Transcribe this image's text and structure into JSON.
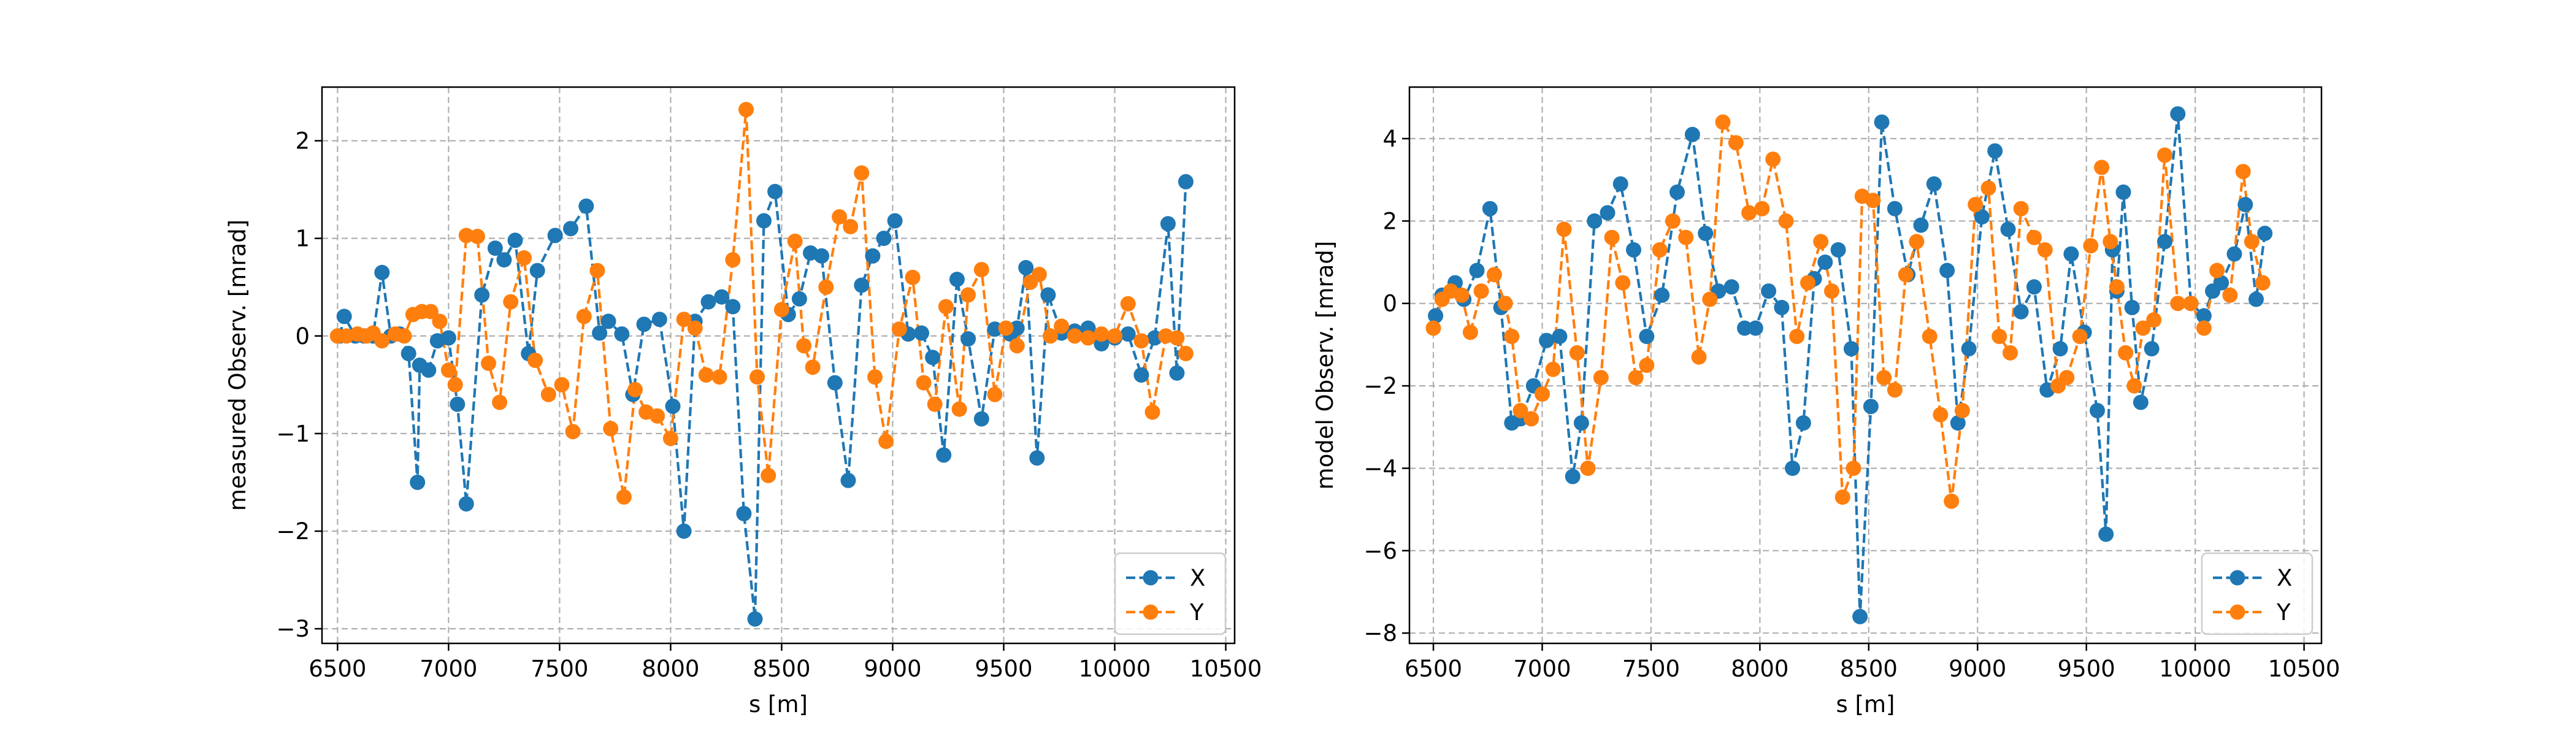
{
  "colors": {
    "X": "#1f77b4",
    "Y": "#ff7f0e"
  },
  "chart_data": [
    {
      "type": "line",
      "marker": "circle",
      "line_style": "dashed",
      "xlabel": "s [m]",
      "ylabel": "measured Observ. [mrad]",
      "xlim": [
        6430,
        10540
      ],
      "ylim": [
        -3.15,
        2.55
      ],
      "xticks": [
        6500,
        7000,
        7500,
        8000,
        8500,
        9000,
        9500,
        10000,
        10500
      ],
      "yticks": [
        -3,
        -2,
        -1,
        0,
        1,
        2
      ],
      "ytick_labels": [
        "−3",
        "−2",
        "−1",
        "0",
        "1",
        "2"
      ],
      "grid": true,
      "legend_position": "lower-right",
      "series": [
        {
          "name": "X",
          "x": [
            6510,
            6530,
            6580,
            6620,
            6660,
            6700,
            6740,
            6780,
            6820,
            6860,
            6870,
            6910,
            6950,
            7000,
            7040,
            7080,
            7150,
            7210,
            7250,
            7300,
            7360,
            7400,
            7480,
            7550,
            7620,
            7680,
            7720,
            7780,
            7830,
            7880,
            7950,
            8010,
            8060,
            8110,
            8170,
            8230,
            8280,
            8330,
            8380,
            8420,
            8470,
            8530,
            8580,
            8630,
            8680,
            8740,
            8800,
            8860,
            8910,
            8960,
            9010,
            9070,
            9130,
            9180,
            9230,
            9290,
            9340,
            9400,
            9460,
            9530,
            9560,
            9600,
            9650,
            9700,
            9760,
            9820,
            9880,
            9940,
            10000,
            10060,
            10120,
            10180,
            10240,
            10280,
            10320
          ],
          "y": [
            0.0,
            0.2,
            0.0,
            0.0,
            0.0,
            0.65,
            0.0,
            0.02,
            -0.18,
            -1.5,
            -0.3,
            -0.35,
            -0.05,
            -0.02,
            -0.7,
            -1.72,
            0.42,
            0.9,
            0.78,
            0.98,
            -0.18,
            0.67,
            1.03,
            1.1,
            1.33,
            0.03,
            0.15,
            0.02,
            -0.6,
            0.12,
            0.17,
            -0.72,
            -2.0,
            0.15,
            0.35,
            0.4,
            0.3,
            -1.82,
            -2.9,
            1.18,
            1.48,
            0.22,
            0.38,
            0.85,
            0.82,
            -0.48,
            -1.48,
            0.52,
            0.82,
            1.0,
            1.18,
            0.02,
            0.03,
            -0.22,
            -1.22,
            0.58,
            -0.03,
            -0.85,
            0.07,
            0.02,
            0.08,
            0.7,
            -1.25,
            0.42,
            0.03,
            0.05,
            0.08,
            -0.08,
            -0.02,
            0.02,
            -0.4,
            -0.02,
            1.15,
            -0.38,
            1.58
          ]
        },
        {
          "name": "Y",
          "x": [
            6500,
            6540,
            6590,
            6630,
            6660,
            6700,
            6760,
            6800,
            6840,
            6880,
            6920,
            6960,
            7000,
            7030,
            7080,
            7130,
            7180,
            7230,
            7280,
            7340,
            7390,
            7450,
            7510,
            7560,
            7610,
            7670,
            7730,
            7790,
            7840,
            7890,
            7940,
            8000,
            8060,
            8110,
            8160,
            8220,
            8280,
            8340,
            8390,
            8440,
            8500,
            8560,
            8600,
            8640,
            8700,
            8760,
            8810,
            8860,
            8920,
            8970,
            9030,
            9090,
            9140,
            9190,
            9240,
            9300,
            9340,
            9400,
            9460,
            9510,
            9560,
            9620,
            9660,
            9710,
            9760,
            9820,
            9880,
            9940,
            10000,
            10060,
            10120,
            10170,
            10230,
            10280,
            10320
          ],
          "y": [
            0.0,
            0.0,
            0.02,
            0.0,
            0.03,
            -0.05,
            0.02,
            0.0,
            0.22,
            0.25,
            0.25,
            0.15,
            -0.35,
            -0.5,
            1.03,
            1.02,
            -0.28,
            -0.68,
            0.35,
            0.8,
            -0.25,
            -0.6,
            -0.5,
            -0.98,
            0.2,
            0.67,
            -0.95,
            -1.65,
            -0.55,
            -0.78,
            -0.82,
            -1.05,
            0.17,
            0.08,
            -0.4,
            -0.42,
            0.78,
            2.32,
            -0.42,
            -1.43,
            0.27,
            0.97,
            -0.1,
            -0.32,
            0.5,
            1.22,
            1.12,
            1.67,
            -0.42,
            -1.08,
            0.07,
            0.6,
            -0.48,
            -0.7,
            0.3,
            -0.75,
            0.42,
            0.68,
            -0.6,
            0.08,
            -0.1,
            0.55,
            0.63,
            0.0,
            0.1,
            0.0,
            -0.02,
            0.02,
            0.0,
            0.33,
            -0.05,
            -0.78,
            0.0,
            -0.02,
            -0.18
          ]
        }
      ]
    },
    {
      "type": "line",
      "marker": "circle",
      "line_style": "dashed",
      "xlabel": "s [m]",
      "ylabel": "model Observ. [mrad]",
      "xlim": [
        6390,
        10580
      ],
      "ylim": [
        -8.25,
        5.25
      ],
      "xticks": [
        6500,
        7000,
        7500,
        8000,
        8500,
        9000,
        9500,
        10000,
        10500
      ],
      "yticks": [
        -8,
        -6,
        -4,
        -2,
        0,
        2,
        4
      ],
      "ytick_labels": [
        "−8",
        "−6",
        "−4",
        "−2",
        "0",
        "2",
        "4"
      ],
      "grid": true,
      "legend_position": "lower-right",
      "series": [
        {
          "name": "X",
          "x": [
            6510,
            6540,
            6600,
            6640,
            6700,
            6760,
            6810,
            6860,
            6900,
            6960,
            7020,
            7080,
            7140,
            7180,
            7240,
            7300,
            7360,
            7420,
            7480,
            7550,
            7620,
            7690,
            7750,
            7810,
            7870,
            7930,
            7980,
            8040,
            8100,
            8150,
            8200,
            8250,
            8300,
            8360,
            8420,
            8460,
            8510,
            8560,
            8620,
            8680,
            8740,
            8800,
            8860,
            8910,
            8960,
            9020,
            9080,
            9140,
            9200,
            9260,
            9320,
            9380,
            9430,
            9490,
            9550,
            9590,
            9620,
            9640,
            9670,
            9710,
            9750,
            9800,
            9860,
            9920,
            9980,
            10040,
            10080,
            10120,
            10180,
            10230,
            10280,
            10320
          ],
          "y": [
            -0.3,
            0.2,
            0.5,
            0.1,
            0.8,
            2.3,
            -0.1,
            -2.9,
            -2.8,
            -2.0,
            -0.9,
            -0.8,
            -4.2,
            -2.9,
            2.0,
            2.2,
            2.9,
            1.3,
            -0.8,
            0.2,
            2.7,
            4.1,
            1.7,
            0.3,
            0.4,
            -0.6,
            -0.6,
            0.3,
            -0.1,
            -4.0,
            -2.9,
            0.6,
            1.0,
            1.3,
            -1.1,
            -7.6,
            -2.5,
            4.4,
            2.3,
            0.7,
            1.9,
            2.9,
            0.8,
            -2.9,
            -1.1,
            2.1,
            3.7,
            1.8,
            -0.2,
            0.4,
            -2.1,
            -1.1,
            1.2,
            -0.7,
            -2.6,
            -5.6,
            1.3,
            0.3,
            2.7,
            -0.1,
            -2.4,
            -1.1,
            1.5,
            4.6,
            0.0,
            -0.3,
            0.3,
            0.5,
            1.2,
            2.4,
            0.1,
            1.7
          ]
        },
        {
          "name": "Y",
          "x": [
            6500,
            6540,
            6580,
            6630,
            6670,
            6720,
            6780,
            6830,
            6860,
            6900,
            6950,
            7000,
            7050,
            7100,
            7160,
            7210,
            7270,
            7320,
            7370,
            7430,
            7480,
            7540,
            7600,
            7660,
            7720,
            7770,
            7830,
            7890,
            7950,
            8010,
            8060,
            8120,
            8170,
            8220,
            8280,
            8330,
            8380,
            8430,
            8470,
            8520,
            8570,
            8620,
            8670,
            8720,
            8780,
            8830,
            8880,
            8930,
            8990,
            9050,
            9100,
            9150,
            9200,
            9260,
            9310,
            9370,
            9410,
            9470,
            9520,
            9570,
            9610,
            9640,
            9680,
            9720,
            9760,
            9810,
            9860,
            9920,
            9980,
            10040,
            10100,
            10160,
            10220,
            10260,
            10310
          ],
          "y": [
            -0.6,
            0.1,
            0.3,
            0.2,
            -0.7,
            0.3,
            0.7,
            0.0,
            -0.8,
            -2.6,
            -2.8,
            -2.2,
            -1.6,
            1.8,
            -1.2,
            -4.0,
            -1.8,
            1.6,
            0.5,
            -1.8,
            -1.5,
            1.3,
            2.0,
            1.6,
            -1.3,
            0.1,
            4.4,
            3.9,
            2.2,
            2.3,
            3.5,
            2.0,
            -0.8,
            0.5,
            1.5,
            0.3,
            -4.7,
            -4.0,
            2.6,
            2.5,
            -1.8,
            -2.1,
            0.7,
            1.5,
            -0.8,
            -2.7,
            -4.8,
            -2.6,
            2.4,
            2.8,
            -0.8,
            -1.2,
            2.3,
            1.6,
            1.3,
            -2.0,
            -1.8,
            -0.8,
            1.4,
            3.3,
            1.5,
            0.4,
            -1.2,
            -2.0,
            -0.6,
            -0.4,
            3.6,
            0.0,
            0.0,
            -0.6,
            0.8,
            0.2,
            3.2,
            1.5,
            0.5
          ]
        }
      ]
    }
  ]
}
